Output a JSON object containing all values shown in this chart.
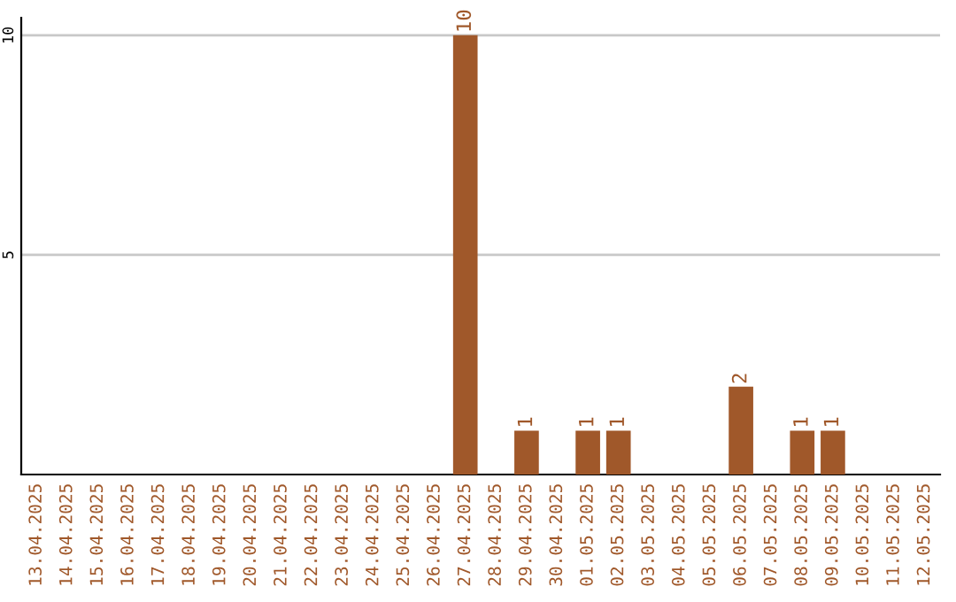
{
  "chart_data": {
    "type": "bar",
    "categories": [
      "13.04.2025",
      "14.04.2025",
      "15.04.2025",
      "16.04.2025",
      "17.04.2025",
      "18.04.2025",
      "19.04.2025",
      "20.04.2025",
      "21.04.2025",
      "22.04.2025",
      "23.04.2025",
      "24.04.2025",
      "25.04.2025",
      "26.04.2025",
      "27.04.2025",
      "28.04.2025",
      "29.04.2025",
      "30.04.2025",
      "01.05.2025",
      "02.05.2025",
      "03.05.2025",
      "04.05.2025",
      "05.05.2025",
      "06.05.2025",
      "07.05.2025",
      "08.05.2025",
      "09.05.2025",
      "10.05.2025",
      "11.05.2025",
      "12.05.2025"
    ],
    "values": [
      0,
      0,
      0,
      0,
      0,
      0,
      0,
      0,
      0,
      0,
      0,
      0,
      0,
      0,
      10,
      0,
      1,
      0,
      1,
      1,
      0,
      0,
      0,
      2,
      0,
      1,
      1,
      0,
      0,
      0
    ],
    "value_labels": [
      null,
      null,
      null,
      null,
      null,
      null,
      null,
      null,
      null,
      null,
      null,
      null,
      null,
      null,
      "10",
      null,
      "1",
      null,
      "1",
      "1",
      null,
      null,
      null,
      "2",
      null,
      "1",
      "1",
      null,
      null,
      null
    ],
    "color": "#a0582a",
    "ylim": [
      0,
      10.4
    ],
    "yticks": [
      5,
      10
    ],
    "grid": "y",
    "legend": false
  }
}
